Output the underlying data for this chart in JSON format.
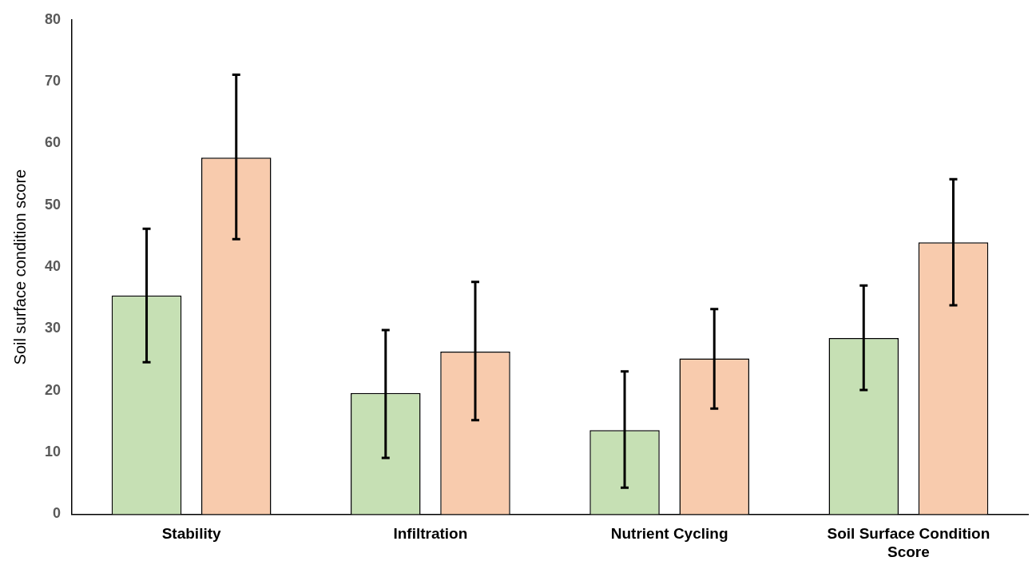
{
  "chart_data": {
    "type": "bar",
    "ylabel": "Soil surface condition score",
    "categories": [
      "Stability",
      "Infiltration",
      "Nutrient Cycling",
      "Soil Surface Condition Score"
    ],
    "series": [
      {
        "color": "#c6e0b4",
        "values": [
          35.4,
          19.6,
          13.6,
          28.5
        ],
        "errors": [
          [
            24.6,
            46.2
          ],
          [
            9.1,
            29.8
          ],
          [
            4.3,
            23.1
          ],
          [
            20.1,
            37.0
          ]
        ]
      },
      {
        "color": "#f8cbad",
        "values": [
          57.7,
          26.3,
          25.2,
          44.0
        ],
        "errors": [
          [
            44.5,
            71.1
          ],
          [
            15.2,
            37.6
          ],
          [
            17.1,
            33.2
          ],
          [
            33.8,
            54.2
          ]
        ]
      }
    ],
    "ylim": [
      0,
      80
    ],
    "yticks": [
      0,
      10,
      20,
      30,
      40,
      50,
      60,
      70,
      80
    ],
    "grid": false,
    "legend": false
  }
}
